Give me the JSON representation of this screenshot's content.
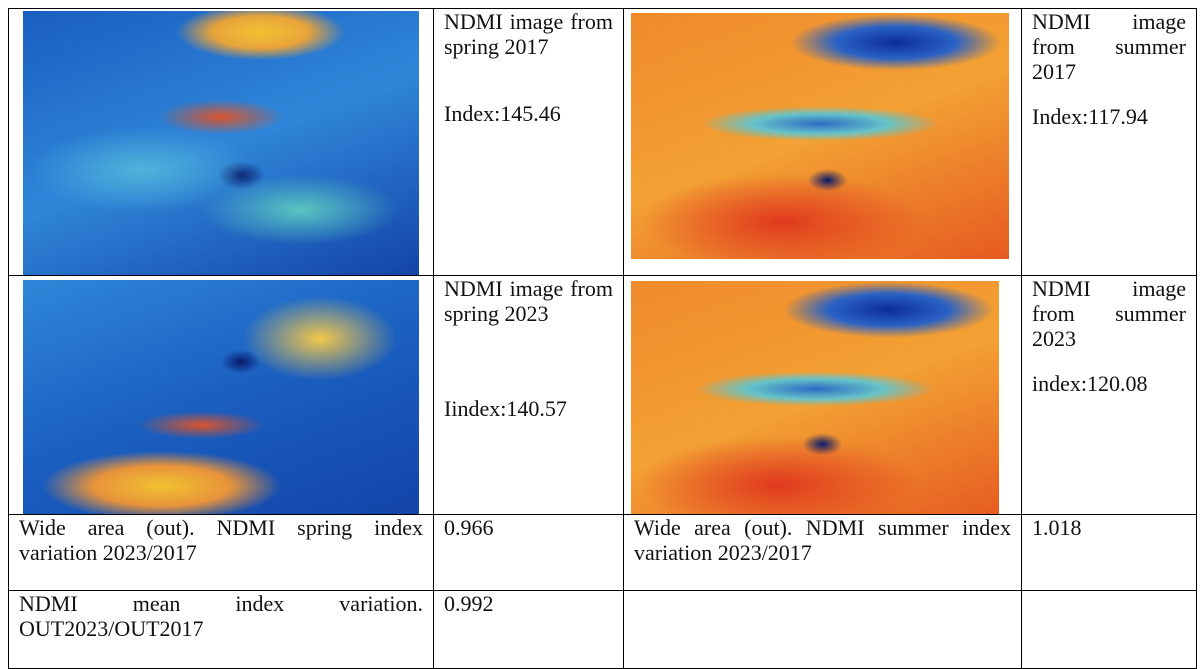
{
  "table": {
    "rows": [
      [
        {
          "caption": "NDMI image from spring 2017",
          "index": "Index:145.46"
        },
        {
          "caption": "NDMI image from summer 2017",
          "index": "Index:117.94"
        }
      ],
      [
        {
          "caption": "NDMI image from spring 2023",
          "index": "Iindex:140.57"
        },
        {
          "caption": "NDMI image from summer 2023",
          "index": "index:120.08"
        }
      ],
      [
        "Wide area (out). NDMI spring index variation 2023/2017",
        "0.966",
        "Wide area (out). NDMI summer index variation 2023/2017",
        "1.018"
      ],
      [
        "NDMI mean index variation. OUT2023/OUT2017",
        "0.992"
      ]
    ]
  }
}
